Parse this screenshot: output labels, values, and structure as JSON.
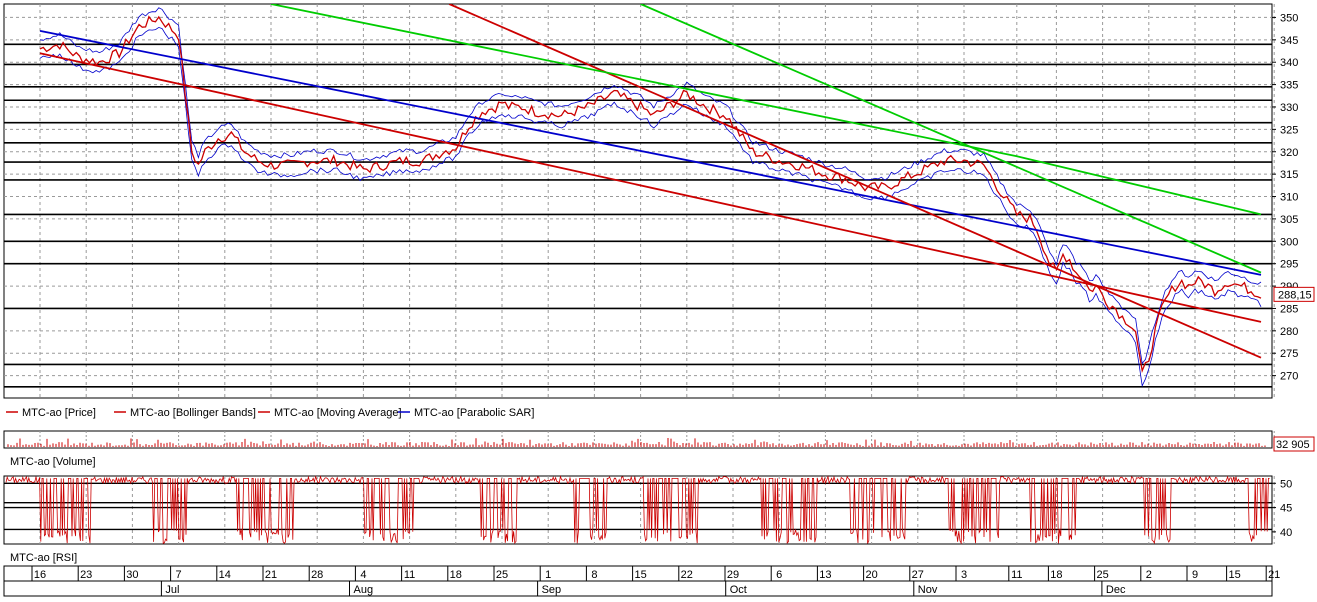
{
  "chart_data": [
    {
      "panel": "price",
      "type": "line",
      "ylim": [
        265,
        353
      ],
      "y_ticks": [
        270,
        275,
        280,
        285,
        290,
        295,
        300,
        305,
        310,
        315,
        320,
        325,
        330,
        335,
        340,
        345,
        350
      ],
      "horizontal_levels": [
        267.5,
        272.5,
        285,
        295,
        300,
        306,
        313.7,
        317.7,
        322,
        326.5,
        331.5,
        334.5,
        339.5,
        344
      ],
      "last_value_label": "288,15",
      "legend": [
        {
          "label": "MTC-ao [Price]",
          "color": "#cc0000"
        },
        {
          "label": "MTC-ao [Bollinger Bands]",
          "color": "#cc0000"
        },
        {
          "label": "MTC-ao [Moving Average]",
          "color": "#cc0000"
        },
        {
          "label": "MTC-ao [Parabolic SAR]",
          "color": "#0000cc"
        }
      ],
      "price_series": {
        "name": "MTC-ao [Price]",
        "x_day": [
          0,
          3,
          6,
          9,
          12,
          15,
          18,
          21,
          22,
          23,
          24,
          25,
          27,
          29,
          31,
          33,
          35,
          38,
          41,
          45,
          49,
          52,
          55,
          58,
          61,
          63,
          65,
          67,
          69,
          70,
          71,
          73,
          75,
          79,
          83,
          87,
          91,
          93,
          95,
          98,
          101,
          104,
          108,
          112,
          115,
          119,
          122,
          125,
          128,
          131,
          134,
          137,
          140,
          143,
          146,
          148,
          150,
          151,
          152,
          153,
          154,
          155,
          156,
          157,
          158,
          159,
          160,
          161,
          162,
          163,
          164,
          165,
          166,
          167,
          168,
          169,
          170,
          171,
          172,
          173,
          174,
          175,
          176,
          177,
          178,
          180,
          182,
          185
        ],
        "values": [
          343,
          344,
          341,
          340,
          342,
          348,
          350,
          346,
          333,
          320,
          317,
          320,
          323,
          324,
          320,
          318,
          317,
          317,
          318,
          318,
          316,
          317,
          318,
          318,
          320,
          321,
          326,
          329,
          330,
          331,
          330,
          330,
          329,
          328,
          330,
          333,
          330,
          328,
          330,
          333,
          330,
          328,
          320,
          318,
          317,
          315,
          314,
          312,
          312,
          314,
          316,
          318,
          318,
          317,
          310,
          306,
          305,
          303,
          299,
          295,
          293,
          297,
          296,
          293,
          292,
          289,
          290,
          288,
          286,
          285,
          283,
          282,
          280,
          270,
          274,
          280,
          285,
          288,
          290,
          291,
          290,
          291,
          291,
          290,
          289,
          291,
          290,
          288.15
        ]
      },
      "sar_line": {
        "name": "MTC-ao [Parabolic SAR]",
        "x_day": [
          0,
          185
        ],
        "values": [
          347,
          292.5
        ]
      },
      "trend_lines": [
        {
          "color": "#cc0000",
          "x_day": [
            0,
            185
          ],
          "values": [
            342,
            282
          ]
        },
        {
          "color": "#cc0000",
          "x_day": [
            62,
            185
          ],
          "values": [
            353,
            274
          ]
        },
        {
          "color": "#00cc00",
          "x_day": [
            35,
            148,
            185
          ],
          "values": [
            353,
            319,
            306
          ]
        },
        {
          "color": "#00cc00",
          "x_day": [
            91,
            185
          ],
          "values": [
            353,
            293
          ]
        }
      ]
    },
    {
      "panel": "volume",
      "type": "bar",
      "legend": [
        {
          "label": "MTC-ao [Volume]",
          "color": "#cc0000"
        }
      ],
      "last_value_label": "32 905"
    },
    {
      "panel": "rsi",
      "type": "line",
      "ylim": [
        37.5,
        51.5
      ],
      "y_ticks": [
        40,
        45,
        50
      ],
      "horizontal_levels": [
        40.5,
        45,
        46,
        50
      ],
      "legend": [
        {
          "label": "MTC-ao [RSI]",
          "color": "#cc0000"
        }
      ]
    },
    {
      "panel": "date-axis",
      "type": "table",
      "day_labels": [
        "16",
        "23",
        "30",
        "7",
        "14",
        "21",
        "28",
        "4",
        "11",
        "18",
        "25",
        "1",
        "8",
        "15",
        "22",
        "29",
        "6",
        "13",
        "20",
        "27",
        "3",
        "11",
        "18",
        "25",
        "2",
        "9",
        "15",
        "21"
      ],
      "day_positions": [
        0,
        7,
        14,
        21,
        28,
        35,
        42,
        49,
        56,
        63,
        70,
        77,
        84,
        91,
        98,
        105,
        112,
        119,
        126,
        133,
        140,
        148,
        154,
        161,
        168,
        175,
        181,
        187
      ],
      "month_labels": [
        "Jul",
        "Aug",
        "Sep",
        "Oct",
        "Nov",
        "Dec"
      ],
      "month_positions": [
        19,
        47.5,
        76,
        104.5,
        133,
        161.5
      ]
    }
  ]
}
